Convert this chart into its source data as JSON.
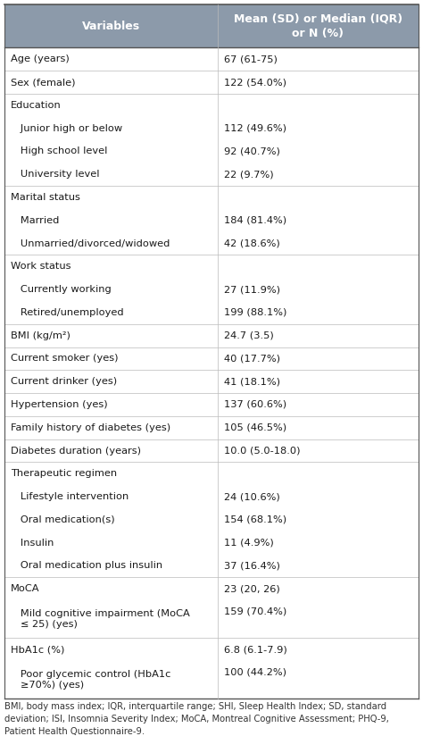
{
  "header": [
    "Variables",
    "Mean (SD) or Median (IQR)\nor N (%)"
  ],
  "header_bg": "#8c9aaa",
  "header_text_color": "#ffffff",
  "header_fontsize": 9.0,
  "body_fontsize": 8.2,
  "footnote_fontsize": 7.2,
  "rows": [
    {
      "var": "Age (years)",
      "val": "67 (61-75)",
      "lines": 1,
      "separator": true
    },
    {
      "var": "Sex (female)",
      "val": "122 (54.0%)",
      "lines": 1,
      "separator": true
    },
    {
      "var": "Education",
      "val": "",
      "lines": 1,
      "separator": false
    },
    {
      "var": "   Junior high or below",
      "val": "112 (49.6%)",
      "lines": 1,
      "separator": false
    },
    {
      "var": "   High school level",
      "val": "92 (40.7%)",
      "lines": 1,
      "separator": false
    },
    {
      "var": "   University level",
      "val": "22 (9.7%)",
      "lines": 1,
      "separator": true
    },
    {
      "var": "Marital status",
      "val": "",
      "lines": 1,
      "separator": false
    },
    {
      "var": "   Married",
      "val": "184 (81.4%)",
      "lines": 1,
      "separator": false
    },
    {
      "var": "   Unmarried/divorced/widowed",
      "val": "42 (18.6%)",
      "lines": 1,
      "separator": true
    },
    {
      "var": "Work status",
      "val": "",
      "lines": 1,
      "separator": false
    },
    {
      "var": "   Currently working",
      "val": "27 (11.9%)",
      "lines": 1,
      "separator": false
    },
    {
      "var": "   Retired/unemployed",
      "val": "199 (88.1%)",
      "lines": 1,
      "separator": true
    },
    {
      "var": "BMI (kg/m²)",
      "val": "24.7 (3.5)",
      "lines": 1,
      "separator": true
    },
    {
      "var": "Current smoker (yes)",
      "val": "40 (17.7%)",
      "lines": 1,
      "separator": true
    },
    {
      "var": "Current drinker (yes)",
      "val": "41 (18.1%)",
      "lines": 1,
      "separator": true
    },
    {
      "var": "Hypertension (yes)",
      "val": "137 (60.6%)",
      "lines": 1,
      "separator": true
    },
    {
      "var": "Family history of diabetes (yes)",
      "val": "105 (46.5%)",
      "lines": 1,
      "separator": true
    },
    {
      "var": "Diabetes duration (years)",
      "val": "10.0 (5.0-18.0)",
      "lines": 1,
      "separator": true
    },
    {
      "var": "Therapeutic regimen",
      "val": "",
      "lines": 1,
      "separator": false
    },
    {
      "var": "   Lifestyle intervention",
      "val": "24 (10.6%)",
      "lines": 1,
      "separator": false
    },
    {
      "var": "   Oral medication(s)",
      "val": "154 (68.1%)",
      "lines": 1,
      "separator": false
    },
    {
      "var": "   Insulin",
      "val": "11 (4.9%)",
      "lines": 1,
      "separator": false
    },
    {
      "var": "   Oral medication plus insulin",
      "val": "37 (16.4%)",
      "lines": 1,
      "separator": true
    },
    {
      "var": "MoCA",
      "val": "23 (20, 26)",
      "lines": 1,
      "separator": false
    },
    {
      "var": "   Mild cognitive impairment (MoCA\n   ≤ 25) (yes)",
      "val": "159 (70.4%)",
      "lines": 2,
      "separator": true
    },
    {
      "var": "HbA1c (%)",
      "val": "6.8 (6.1-7.9)",
      "lines": 1,
      "separator": false
    },
    {
      "var": "   Poor glycemic control (HbA1c\n   ≥70%) (yes)",
      "val": "100 (44.2%)",
      "lines": 2,
      "separator": false
    }
  ],
  "footnote": "BMI, body mass index; IQR, interquartile range; SHI, Sleep Health Index; SD, standard\ndeviation; ISI, Insomnia Severity Index; MoCA, Montreal Cognitive Assessment; PHQ-9,\nPatient Health Questionnaire-9.",
  "col_split": 0.515,
  "bg_color": "#ffffff",
  "border_color": "#bbbbbb",
  "sep_color": "#cccccc",
  "text_color": "#1a1a1a"
}
